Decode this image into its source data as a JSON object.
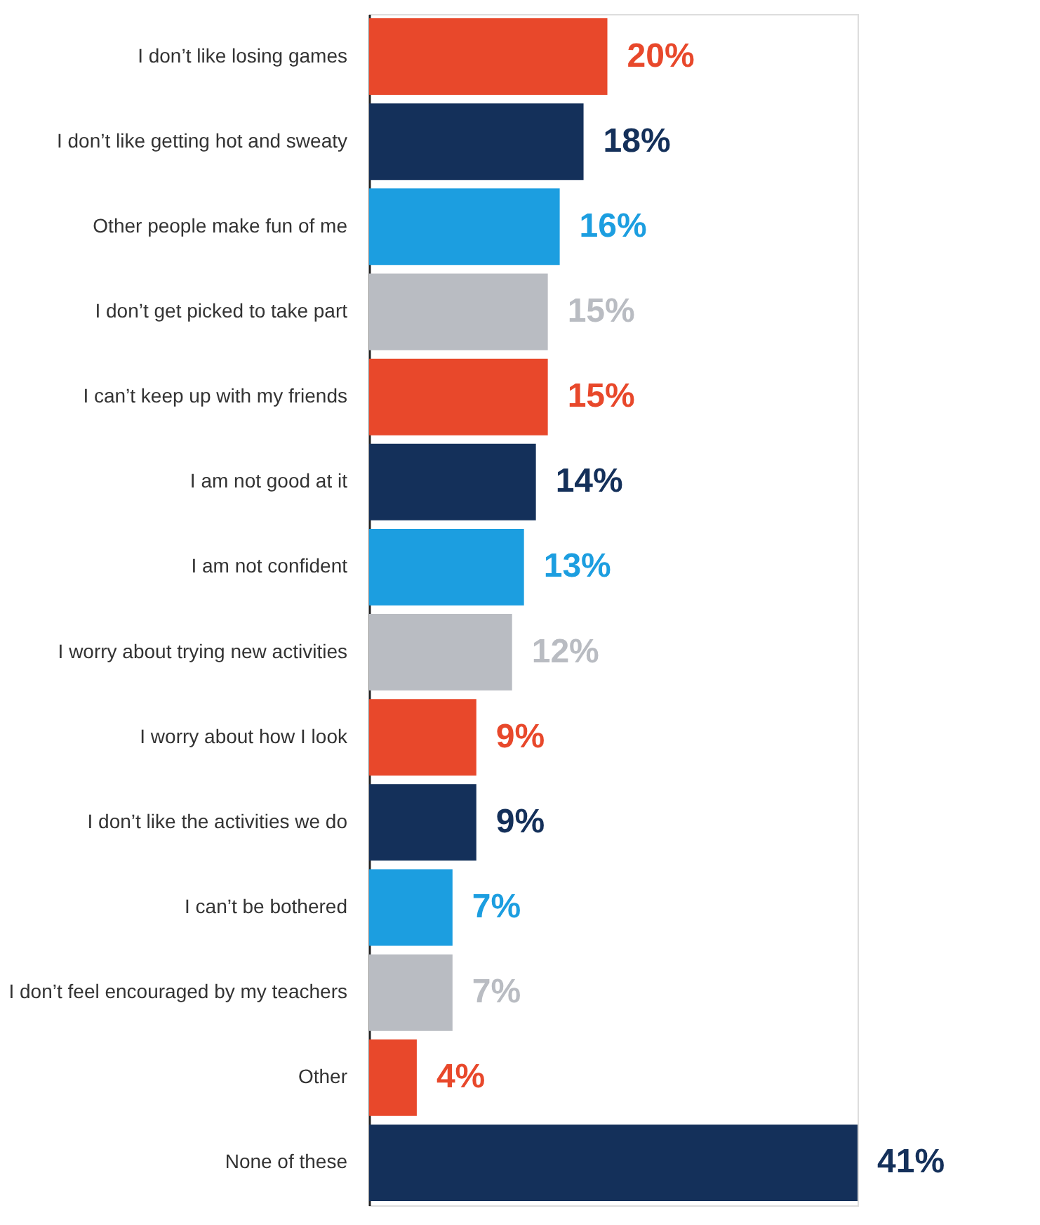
{
  "chart_data": {
    "type": "bar",
    "orientation": "horizontal",
    "categories": [
      "I don’t like losing games",
      "I don’t like getting hot and sweaty",
      "Other people make fun of me",
      "I don’t get picked to take part",
      "I can’t keep up with my friends",
      "I am not good at it",
      "I am not confident",
      "I worry about trying new activities",
      "I worry about how I look",
      "I don’t like the activities we do",
      "I can’t be bothered",
      "I don’t feel encouraged by my teachers",
      "Other",
      "None of these"
    ],
    "values": [
      20,
      18,
      16,
      15,
      15,
      14,
      13,
      12,
      9,
      9,
      7,
      7,
      4,
      41
    ],
    "value_labels": [
      "20%",
      "18%",
      "16%",
      "15%",
      "15%",
      "14%",
      "13%",
      "12%",
      "9%",
      "9%",
      "7%",
      "7%",
      "4%",
      "41%"
    ],
    "colors": [
      "#e8482b",
      "#14305a",
      "#1c9ee0",
      "#b9bcc2",
      "#e8482b",
      "#14305a",
      "#1c9ee0",
      "#b9bcc2",
      "#e8482b",
      "#14305a",
      "#1c9ee0",
      "#b9bcc2",
      "#e8482b",
      "#14305a"
    ],
    "grid": false,
    "legend": false
  }
}
